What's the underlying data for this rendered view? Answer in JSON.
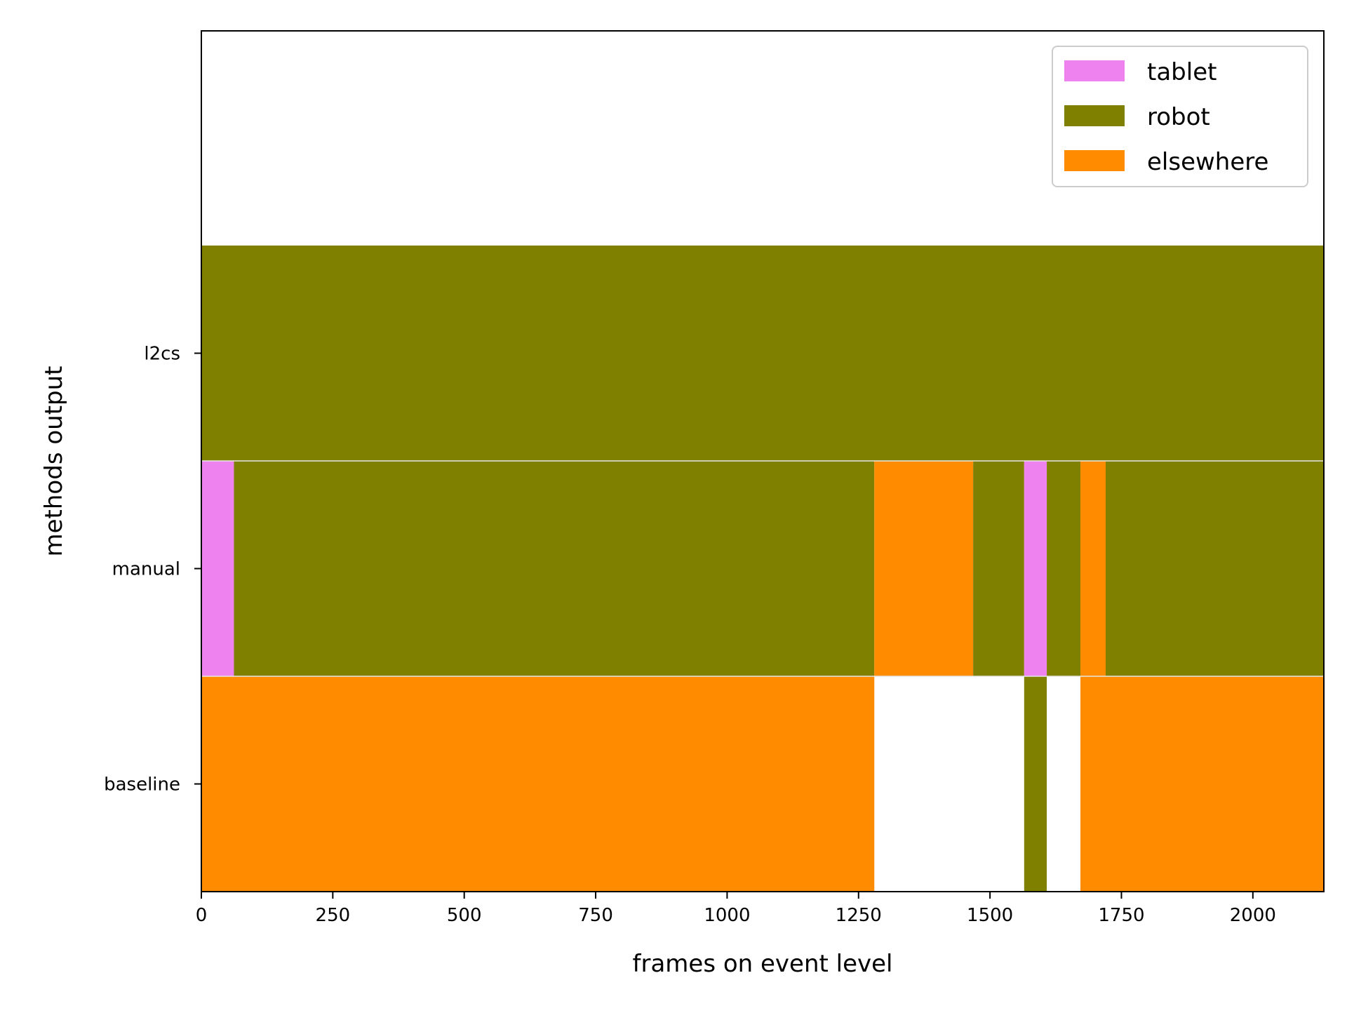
{
  "chart_data": {
    "type": "bar",
    "orientation": "horizontal",
    "stacked_timeline": true,
    "title": "",
    "xlabel": "frames on event level",
    "ylabel": "methods output",
    "xlim": [
      0,
      2135
    ],
    "xticks": [
      0,
      250,
      500,
      750,
      1000,
      1250,
      1500,
      1750,
      2000
    ],
    "xtick_labels": [
      "0",
      "250",
      "500",
      "750",
      "1000",
      "1250",
      "1500",
      "1750",
      "2000"
    ],
    "categories": [
      "baseline",
      "manual",
      "l2cs"
    ],
    "legend": {
      "position": "upper-right",
      "entries": [
        {
          "label": "tablet",
          "color": "#ee82ee"
        },
        {
          "label": "robot",
          "color": "#808000"
        },
        {
          "label": "elsewhere",
          "color": "#ff8c00"
        }
      ]
    },
    "rows": [
      {
        "name": "baseline",
        "segments": [
          {
            "start": 0,
            "end": 1280,
            "label": "elsewhere"
          },
          {
            "start": 1565,
            "end": 1608,
            "label": "robot"
          },
          {
            "start": 1672,
            "end": 2135,
            "label": "elsewhere"
          }
        ]
      },
      {
        "name": "manual",
        "segments": [
          {
            "start": 0,
            "end": 62,
            "label": "tablet"
          },
          {
            "start": 62,
            "end": 1280,
            "label": "robot"
          },
          {
            "start": 1280,
            "end": 1468,
            "label": "elsewhere"
          },
          {
            "start": 1468,
            "end": 1565,
            "label": "robot"
          },
          {
            "start": 1565,
            "end": 1608,
            "label": "tablet"
          },
          {
            "start": 1608,
            "end": 1672,
            "label": "robot"
          },
          {
            "start": 1672,
            "end": 1720,
            "label": "elsewhere"
          },
          {
            "start": 1720,
            "end": 2135,
            "label": "robot"
          }
        ]
      },
      {
        "name": "l2cs",
        "segments": [
          {
            "start": 0,
            "end": 2135,
            "label": "robot"
          }
        ]
      }
    ]
  }
}
